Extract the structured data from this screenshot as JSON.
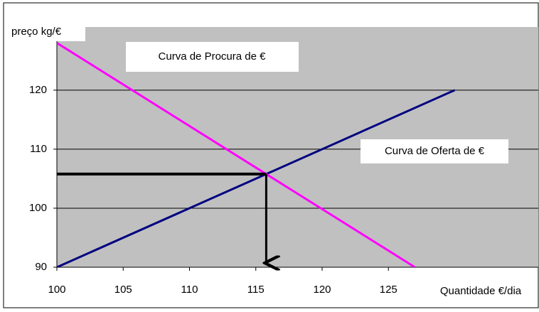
{
  "chart_data": {
    "type": "line",
    "xlabel": "Quantidade €/dia",
    "ylabel": "preço kg/€",
    "annotations": [
      "Curva de Procura de €",
      "Curva de Oferta de €"
    ],
    "series": [
      {
        "name": "Curva de Oferta de €",
        "color": "#000080",
        "x": [
          100,
          130
        ],
        "values": [
          90,
          120
        ]
      },
      {
        "name": "Curva de Procura de €",
        "color": "#ff00ff",
        "x": [
          100,
          127
        ],
        "values": [
          128,
          90
        ]
      }
    ],
    "xlim": [
      100,
      136.3
    ],
    "ylim": [
      90,
      130.7
    ],
    "xticks": [
      100,
      105,
      110,
      115,
      120,
      125
    ],
    "yticks": [
      90,
      100,
      110,
      120
    ],
    "grid": true,
    "plot_color": "#c0c0c0"
  }
}
